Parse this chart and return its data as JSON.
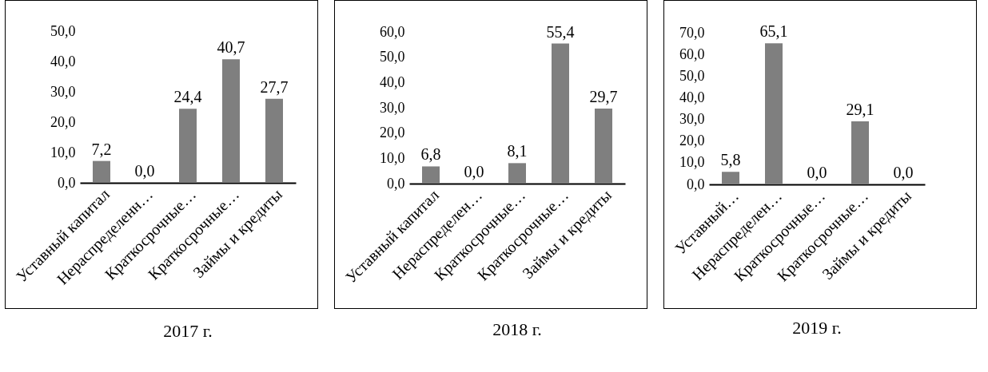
{
  "chart_data": [
    {
      "type": "bar",
      "title": "2017 г.",
      "categories": [
        "Уставный капитал",
        "Нераспределенн…",
        "Краткосрочные…",
        "Краткосрочные…",
        "Займы и кредиты"
      ],
      "values": [
        7.2,
        0.0,
        24.4,
        40.7,
        27.7
      ],
      "value_labels": [
        "7,2",
        "0,0",
        "24,4",
        "40,7",
        "27,7"
      ],
      "color": "#7f7f7f",
      "ylim": [
        0,
        50
      ],
      "yticks": [
        {
          "value": 0,
          "label": "0,0"
        },
        {
          "value": 10,
          "label": "10,0"
        },
        {
          "value": 20,
          "label": "20,0"
        },
        {
          "value": 30,
          "label": "30,0"
        },
        {
          "value": 40,
          "label": "40,0"
        },
        {
          "value": 50,
          "label": "50,0"
        }
      ],
      "grid": false
    },
    {
      "type": "bar",
      "title": "2018 г.",
      "categories": [
        "Уставный капитал",
        "Нераспределен…",
        "Краткосрочные…",
        "Краткосрочные…",
        "Займы и кредиты"
      ],
      "values": [
        6.8,
        0.0,
        8.1,
        55.4,
        29.7
      ],
      "value_labels": [
        "6,8",
        "0,0",
        "8,1",
        "55,4",
        "29,7"
      ],
      "color": "#7f7f7f",
      "ylim": [
        0,
        60
      ],
      "yticks": [
        {
          "value": 0,
          "label": "0,0"
        },
        {
          "value": 10,
          "label": "10,0"
        },
        {
          "value": 20,
          "label": "20,0"
        },
        {
          "value": 30,
          "label": "30,0"
        },
        {
          "value": 40,
          "label": "40,0"
        },
        {
          "value": 50,
          "label": "50,0"
        },
        {
          "value": 60,
          "label": "60,0"
        }
      ],
      "grid": false
    },
    {
      "type": "bar",
      "title": "2019 г.",
      "categories": [
        "Уставный…",
        "Нераспределен…",
        "Краткосрочные…",
        "Краткосрочные…",
        "Займы и кредиты"
      ],
      "values": [
        5.8,
        65.1,
        0.0,
        29.1,
        0.0
      ],
      "value_labels": [
        "5,8",
        "65,1",
        "0,0",
        "29,1",
        "0,0"
      ],
      "color": "#7f7f7f",
      "ylim": [
        0,
        70
      ],
      "yticks": [
        {
          "value": 0,
          "label": "0,0"
        },
        {
          "value": 10,
          "label": "10,0"
        },
        {
          "value": 20,
          "label": "20,0"
        },
        {
          "value": 30,
          "label": "30,0"
        },
        {
          "value": 40,
          "label": "40,0"
        },
        {
          "value": 50,
          "label": "50,0"
        },
        {
          "value": 60,
          "label": "60,0"
        },
        {
          "value": 70,
          "label": "70,0"
        }
      ],
      "grid": false
    }
  ]
}
